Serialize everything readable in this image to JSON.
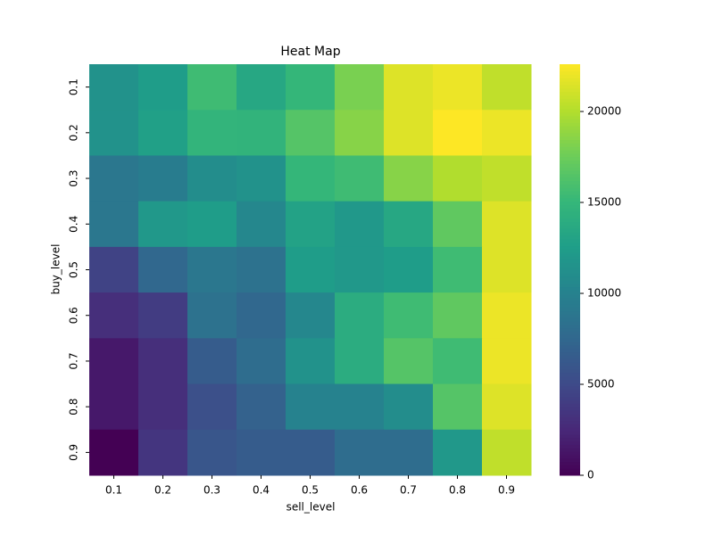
{
  "chart_data": {
    "type": "heatmap",
    "title": "Heat Map",
    "x_label": "sell_level",
    "y_label": "buy_level",
    "x_categories": [
      "0.1",
      "0.2",
      "0.3",
      "0.4",
      "0.5",
      "0.6",
      "0.7",
      "0.8",
      "0.9"
    ],
    "y_categories": [
      "0.1",
      "0.2",
      "0.3",
      "0.4",
      "0.5",
      "0.6",
      "0.7",
      "0.8",
      "0.9"
    ],
    "values": [
      [
        11500,
        12500,
        15500,
        13500,
        15000,
        18000,
        21500,
        22000,
        20500
      ],
      [
        11500,
        12800,
        14800,
        14700,
        16500,
        18500,
        21500,
        22600,
        22000
      ],
      [
        9000,
        9500,
        11000,
        11500,
        15000,
        15500,
        18500,
        20000,
        20500
      ],
      [
        9000,
        12000,
        12500,
        10500,
        13000,
        12000,
        13500,
        17000,
        21500
      ],
      [
        4500,
        7500,
        9000,
        8500,
        12500,
        12000,
        12500,
        15500,
        21500
      ],
      [
        3000,
        4000,
        8500,
        7500,
        10500,
        14000,
        15500,
        17000,
        22000
      ],
      [
        1500,
        3000,
        6500,
        8000,
        11500,
        14000,
        16500,
        15500,
        22000
      ],
      [
        1500,
        3000,
        5500,
        7000,
        10000,
        10000,
        11000,
        16500,
        21500
      ],
      [
        0,
        3500,
        6000,
        6500,
        6500,
        8000,
        8000,
        12000,
        20500
      ]
    ],
    "colormap": "viridis",
    "clim": [
      0,
      22600
    ],
    "cticks": [
      0,
      5000,
      10000,
      15000,
      20000
    ]
  }
}
